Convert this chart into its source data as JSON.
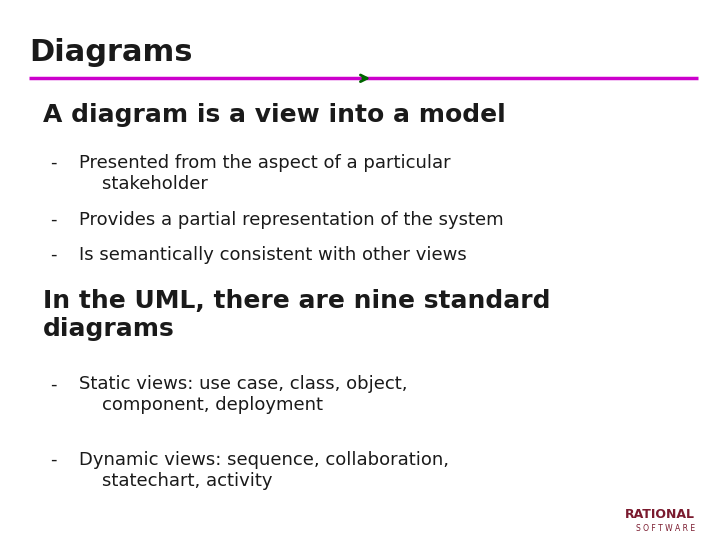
{
  "title": "Diagrams",
  "title_color": "#1a1a1a",
  "title_fontsize": 22,
  "bg_color": "#ffffff",
  "separator_color": "#cc00cc",
  "arrow_color": "#006600",
  "heading1": "A diagram is a view into a model",
  "heading1_fontsize": 18,
  "bullet1": [
    "Presented from the aspect of a particular\n    stakeholder",
    "Provides a partial representation of the system",
    "Is semantically consistent with other views"
  ],
  "heading2": "In the UML, there are nine standard\ndiagrams",
  "heading2_fontsize": 18,
  "bullet2": [
    "Static views: use case, class, object,\n    component, deployment",
    "Dynamic views: sequence, collaboration,\n    statechart, activity"
  ],
  "bullet_fontsize": 13,
  "rational_color": "#7a1a2e",
  "rational_text": "RATIONAL",
  "software_text": "S O F T W A R E"
}
